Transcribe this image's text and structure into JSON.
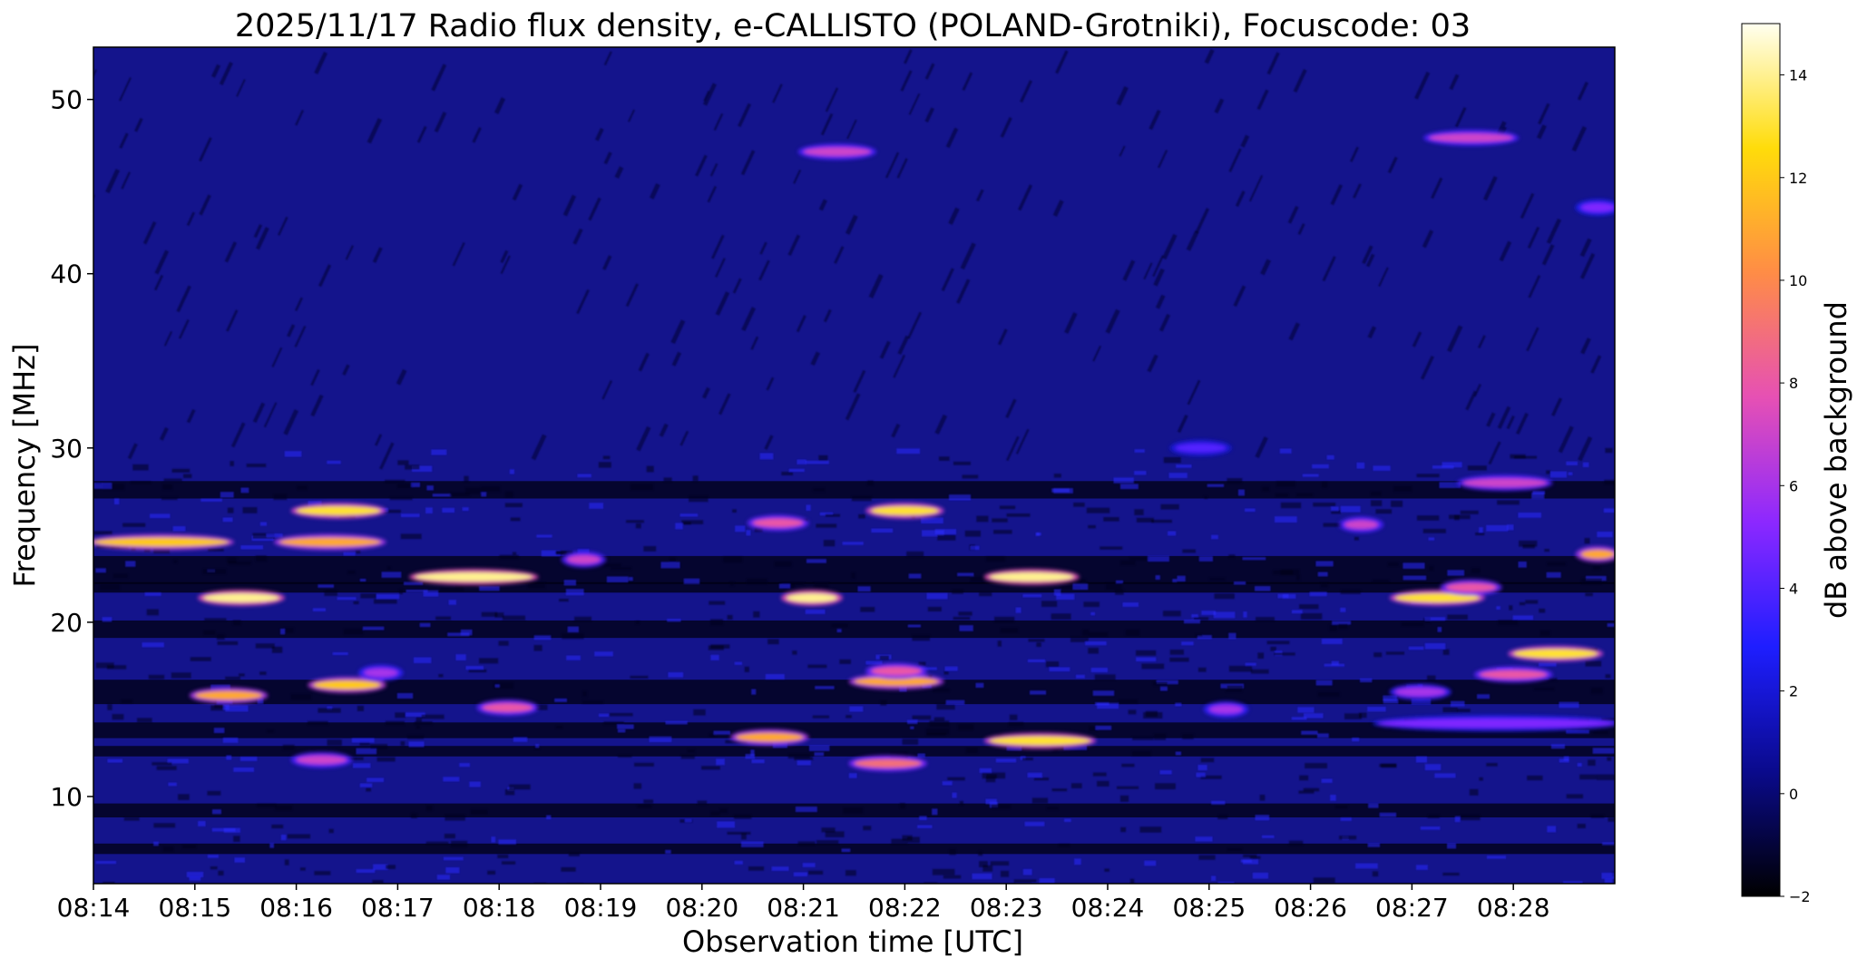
{
  "chart_data": {
    "type": "heatmap",
    "title": "2025/11/17  Radio flux density, e-CALLISTO (POLAND-Grotniki), Focuscode: 03",
    "xlabel": "Observation time [UTC]",
    "ylabel": "Frequency [MHz]",
    "xlim": [
      "08:14",
      "08:29"
    ],
    "ylim": [
      5,
      53
    ],
    "x_ticks": [
      "08:14",
      "08:15",
      "08:16",
      "08:17",
      "08:18",
      "08:19",
      "08:20",
      "08:21",
      "08:22",
      "08:23",
      "08:24",
      "08:25",
      "08:26",
      "08:27",
      "08:28"
    ],
    "y_ticks": [
      10,
      20,
      30,
      40,
      50
    ],
    "colorbar": {
      "label": "dB above background",
      "range": [
        -2,
        15
      ],
      "ticks": [
        -2,
        0,
        2,
        4,
        6,
        8,
        10,
        12,
        14
      ],
      "colormap": "gnuplot2",
      "stops": [
        "#000000",
        "#0a0a8c",
        "#1e1eff",
        "#8c28ff",
        "#e650b4",
        "#ff8c46",
        "#ffdc0a",
        "#fffff0"
      ]
    },
    "background_color": "#14148c",
    "bursts": [
      {
        "t0": "08:14:00",
        "t1": "08:15:20",
        "f": 24.6,
        "db": 12
      },
      {
        "t0": "08:15:50",
        "t1": "08:16:50",
        "f": 24.6,
        "db": 11
      },
      {
        "t0": "08:16:00",
        "t1": "08:16:50",
        "f": 26.4,
        "db": 13
      },
      {
        "t0": "08:15:05",
        "t1": "08:15:50",
        "f": 21.4,
        "db": 14
      },
      {
        "t0": "08:17:10",
        "t1": "08:18:20",
        "f": 22.6,
        "db": 14
      },
      {
        "t0": "08:15:00",
        "t1": "08:15:40",
        "f": 15.8,
        "db": 11
      },
      {
        "t0": "08:16:10",
        "t1": "08:16:50",
        "f": 16.4,
        "db": 12
      },
      {
        "t0": "08:16:40",
        "t1": "08:17:00",
        "f": 17.1,
        "db": 6
      },
      {
        "t0": "08:17:50",
        "t1": "08:18:20",
        "f": 15.1,
        "db": 8
      },
      {
        "t0": "08:18:40",
        "t1": "08:19:00",
        "f": 23.6,
        "db": 7
      },
      {
        "t0": "08:16:00",
        "t1": "08:16:30",
        "f": 12.1,
        "db": 7
      },
      {
        "t0": "08:20:50",
        "t1": "08:21:20",
        "f": 21.4,
        "db": 14
      },
      {
        "t0": "08:21:40",
        "t1": "08:22:20",
        "f": 26.4,
        "db": 13
      },
      {
        "t0": "08:20:30",
        "t1": "08:21:00",
        "f": 25.7,
        "db": 8
      },
      {
        "t0": "08:22:50",
        "t1": "08:23:40",
        "f": 22.6,
        "db": 14
      },
      {
        "t0": "08:21:30",
        "t1": "08:22:20",
        "f": 16.6,
        "db": 11
      },
      {
        "t0": "08:21:40",
        "t1": "08:22:10",
        "f": 17.2,
        "db": 8
      },
      {
        "t0": "08:20:20",
        "t1": "08:21:00",
        "f": 13.4,
        "db": 11
      },
      {
        "t0": "08:21:30",
        "t1": "08:22:10",
        "f": 11.9,
        "db": 9
      },
      {
        "t0": "08:22:50",
        "t1": "08:23:50",
        "f": 13.2,
        "db": 13
      },
      {
        "t0": "08:21:00",
        "t1": "08:21:40",
        "f": 47.0,
        "db": 7
      },
      {
        "t0": "08:24:40",
        "t1": "08:25:10",
        "f": 30.0,
        "db": 4
      },
      {
        "t0": "08:26:20",
        "t1": "08:26:40",
        "f": 25.6,
        "db": 7
      },
      {
        "t0": "08:26:50",
        "t1": "08:27:40",
        "f": 21.4,
        "db": 13
      },
      {
        "t0": "08:27:20",
        "t1": "08:27:50",
        "f": 22.0,
        "db": 8
      },
      {
        "t0": "08:28:00",
        "t1": "08:28:50",
        "f": 18.2,
        "db": 13
      },
      {
        "t0": "08:27:40",
        "t1": "08:28:20",
        "f": 17.0,
        "db": 8
      },
      {
        "t0": "08:27:30",
        "t1": "08:28:20",
        "f": 28.0,
        "db": 7
      },
      {
        "t0": "08:28:40",
        "t1": "08:29:00",
        "f": 23.9,
        "db": 11
      },
      {
        "t0": "08:27:10",
        "t1": "08:28:00",
        "f": 47.8,
        "db": 7
      },
      {
        "t0": "08:28:40",
        "t1": "08:29:00",
        "f": 43.8,
        "db": 5
      },
      {
        "t0": "08:26:50",
        "t1": "08:27:20",
        "f": 16.0,
        "db": 6
      },
      {
        "t0": "08:25:00",
        "t1": "08:25:20",
        "f": 15.0,
        "db": 6
      },
      {
        "t0": "08:26:40",
        "t1": "08:29:00",
        "f": 14.2,
        "db": 5
      }
    ]
  }
}
